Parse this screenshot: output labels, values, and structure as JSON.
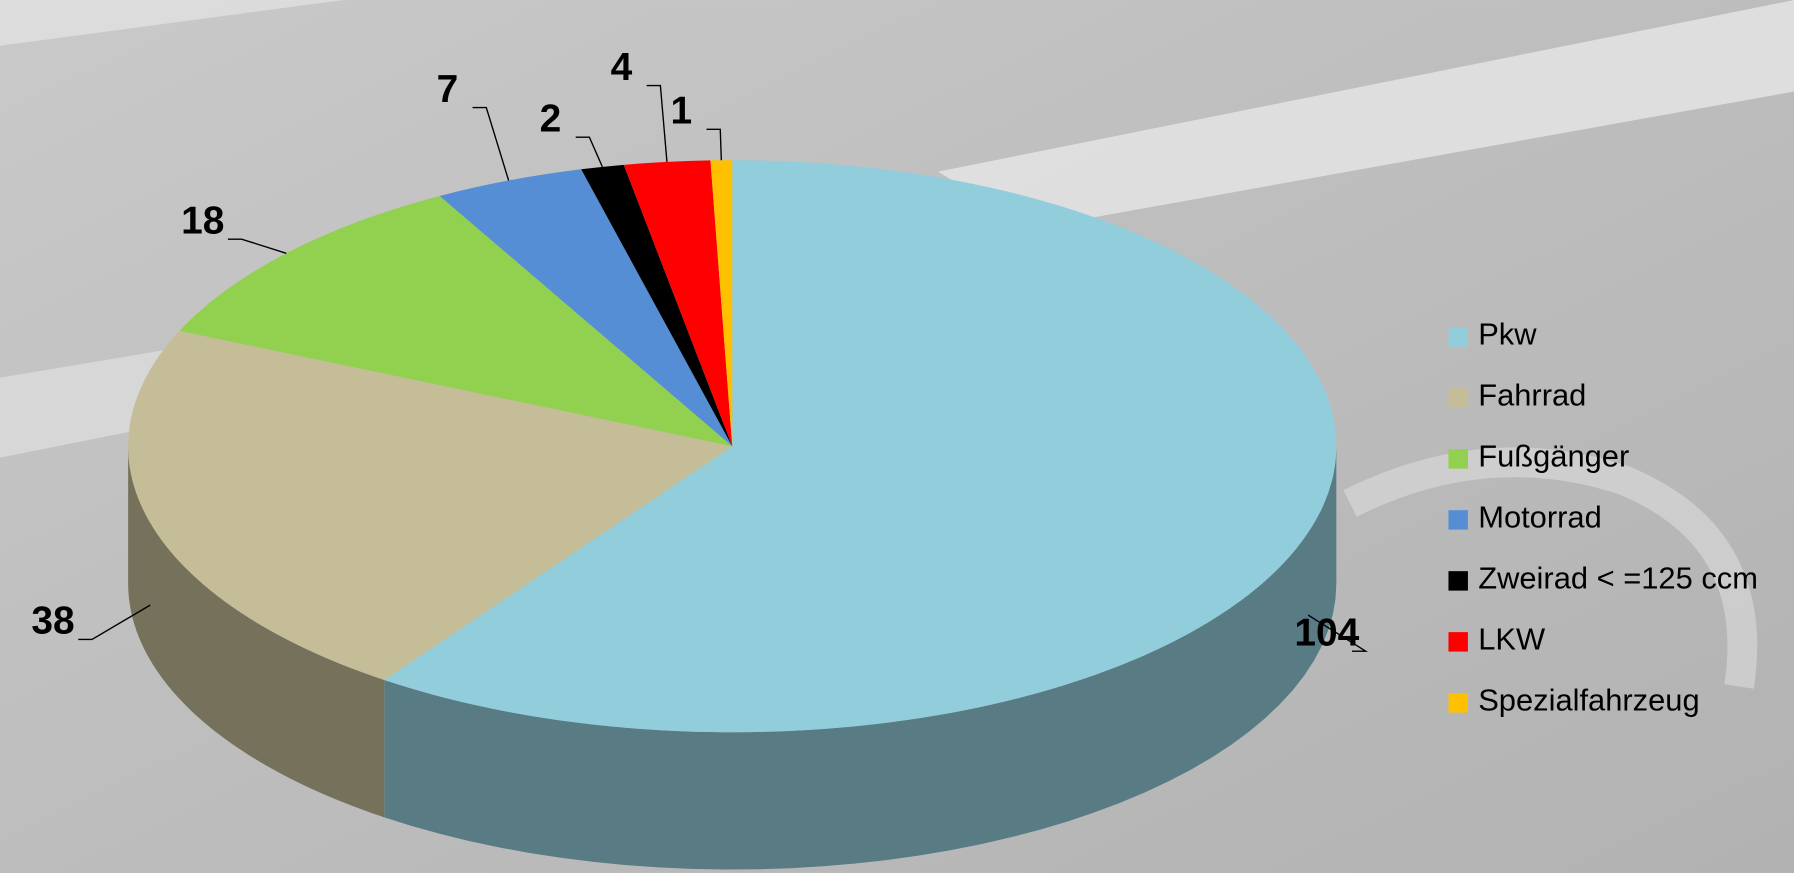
{
  "chart_data": {
    "type": "pie",
    "categories": [
      "Pkw",
      "Fahrrad",
      "Fußgänger",
      "Motorrad",
      "Zweirad < =125 ccm",
      "LKW",
      "Spezialfahrzeug"
    ],
    "values": [
      104,
      38,
      18,
      7,
      2,
      4,
      1
    ],
    "colors": [
      "#92cddc",
      "#c4bd97",
      "#92d050",
      "#558ed5",
      "#000000",
      "#ff0000",
      "#ffc000"
    ],
    "legend": "right"
  }
}
